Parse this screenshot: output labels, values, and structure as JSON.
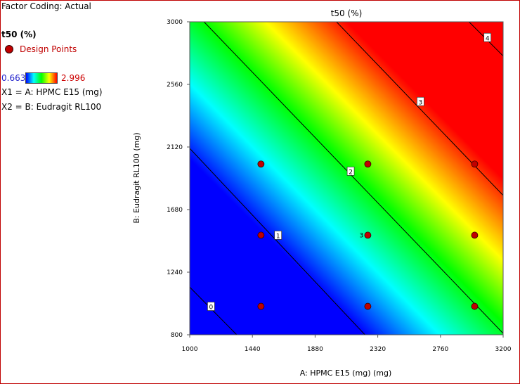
{
  "factor_coding": "Factor Coding: Actual",
  "legend": {
    "response": "t50 (%)",
    "design_points_label": "Design Points",
    "min_value": "0.663",
    "max_value": "2.996",
    "x1_label": "X1 = A: HPMC E15 (mg)",
    "x2_label": "X2 = B: Eudragit RL100"
  },
  "colors": {
    "min_label": "#2222cc",
    "max_label": "#cc0000",
    "design_point": "#c00000"
  },
  "chart_data": {
    "type": "contour",
    "title": "t50 (%)",
    "xlabel": "A: HPMC E15 (mg) (mg)",
    "ylabel": "B: Eudragit RL100 (mg)",
    "xlim": [
      1000,
      3200
    ],
    "ylim": [
      800,
      3000
    ],
    "xticks": [
      "1000",
      "1440",
      "1880",
      "2320",
      "2760",
      "3200"
    ],
    "yticks": [
      "800",
      "1240",
      "1680",
      "2120",
      "2560",
      "3000"
    ],
    "colorscale": [
      "#0000ff",
      "#00ffff",
      "#00ff00",
      "#ffff00",
      "#ff0000"
    ],
    "contours": [
      {
        "label": "0",
        "line": [
          [
            1000,
            1135
          ],
          [
            1330,
            800
          ]
        ],
        "label_at": [
          1150,
          1000
        ]
      },
      {
        "label": "1",
        "line": [
          [
            1000,
            2110
          ],
          [
            2230,
            800
          ]
        ],
        "label_at": [
          1620,
          1500
        ]
      },
      {
        "label": "2",
        "line": [
          [
            1100,
            3000
          ],
          [
            3200,
            810
          ]
        ],
        "label_at": [
          2130,
          1950
        ]
      },
      {
        "label": "3",
        "line": [
          [
            2030,
            3000
          ],
          [
            3200,
            1780
          ]
        ],
        "label_at": [
          2620,
          2440
        ]
      },
      {
        "label": "4",
        "line": [
          [
            2960,
            3000
          ],
          [
            3200,
            2760
          ]
        ],
        "label_at": [
          3090,
          2890
        ]
      }
    ],
    "design_points": [
      {
        "x": 1500,
        "y": 1000
      },
      {
        "x": 1500,
        "y": 1500
      },
      {
        "x": 1500,
        "y": 2000
      },
      {
        "x": 2250,
        "y": 1000
      },
      {
        "x": 2250,
        "y": 1500,
        "label": "3"
      },
      {
        "x": 2250,
        "y": 2000
      },
      {
        "x": 3000,
        "y": 1000
      },
      {
        "x": 3000,
        "y": 1500
      },
      {
        "x": 3000,
        "y": 2000
      }
    ]
  }
}
